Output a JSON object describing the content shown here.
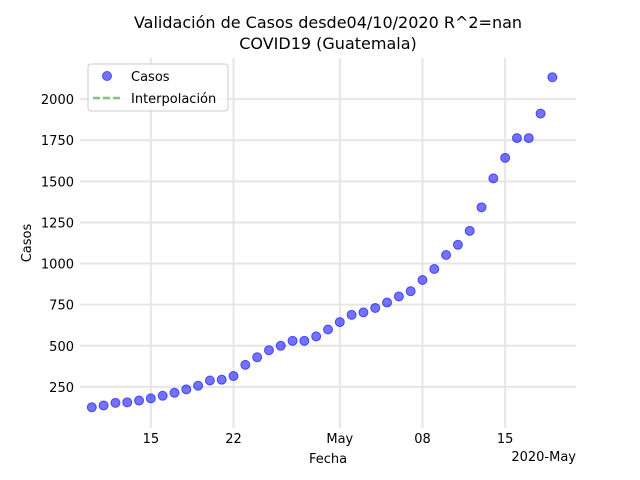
{
  "chart_data": {
    "type": "scatter",
    "title_line1": "Validación de Casos desde04/10/2020 R^2=nan",
    "title_line2": "COVID19 (Guatemala)",
    "xlabel": "Fecha",
    "ylabel": "Casos",
    "x_offset_label": "2020-May",
    "xlim": [
      "2020-04-09",
      "2020-05-21"
    ],
    "ylim": [
      0,
      2250
    ],
    "x_ticks": [
      {
        "date": "2020-04-15",
        "label": "15"
      },
      {
        "date": "2020-04-22",
        "label": "22"
      },
      {
        "date": "2020-05-01",
        "label": "May"
      },
      {
        "date": "2020-05-08",
        "label": "08"
      },
      {
        "date": "2020-05-15",
        "label": "15"
      }
    ],
    "y_ticks": [
      250,
      500,
      750,
      1000,
      1250,
      1500,
      1750,
      2000
    ],
    "grid": "both",
    "legend_position": "top-left",
    "series": [
      {
        "name": "Casos",
        "marker": "circle",
        "color": "#0000ff",
        "x": [
          "2020-04-10",
          "2020-04-11",
          "2020-04-12",
          "2020-04-13",
          "2020-04-14",
          "2020-04-15",
          "2020-04-16",
          "2020-04-17",
          "2020-04-18",
          "2020-04-19",
          "2020-04-20",
          "2020-04-21",
          "2020-04-22",
          "2020-04-23",
          "2020-04-24",
          "2020-04-25",
          "2020-04-26",
          "2020-04-27",
          "2020-04-28",
          "2020-04-29",
          "2020-04-30",
          "2020-05-01",
          "2020-05-02",
          "2020-05-03",
          "2020-05-04",
          "2020-05-05",
          "2020-05-06",
          "2020-05-07",
          "2020-05-08",
          "2020-05-09",
          "2020-05-10",
          "2020-05-11",
          "2020-05-12",
          "2020-05-13",
          "2020-05-14",
          "2020-05-15",
          "2020-05-16",
          "2020-05-17",
          "2020-05-18",
          "2020-05-19"
        ],
        "y": [
          126,
          137,
          153,
          156,
          167,
          180,
          196,
          214,
          235,
          257,
          289,
          294,
          316,
          384,
          430,
          473,
          500,
          530,
          530,
          557,
          599,
          644,
          688,
          703,
          730,
          763,
          800,
          832,
          900,
          967,
          1052,
          1114,
          1199,
          1342,
          1518,
          1643,
          1763,
          1763,
          1912,
          2133
        ]
      },
      {
        "name": "Interpolación",
        "style": "dashed",
        "color": "#2ca02c",
        "x": [],
        "y": []
      }
    ]
  }
}
